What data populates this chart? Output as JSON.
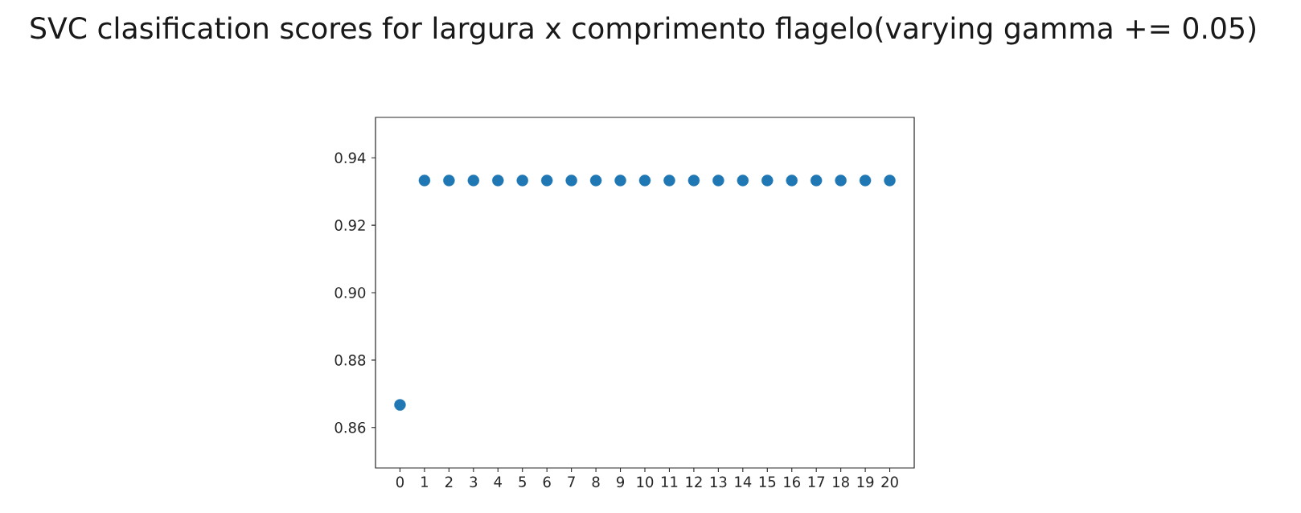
{
  "chart_data": {
    "type": "scatter",
    "title": "SVC clasification scores for  largura x comprimento flagelo(varying gamma += 0.05)",
    "x": [
      0,
      1,
      2,
      3,
      4,
      5,
      6,
      7,
      8,
      9,
      10,
      11,
      12,
      13,
      14,
      15,
      16,
      17,
      18,
      19,
      20
    ],
    "values": [
      0.8667,
      0.9333,
      0.9333,
      0.9333,
      0.9333,
      0.9333,
      0.9333,
      0.9333,
      0.9333,
      0.9333,
      0.9333,
      0.9333,
      0.9333,
      0.9333,
      0.9333,
      0.9333,
      0.9333,
      0.9333,
      0.9333,
      0.9333,
      0.9333
    ],
    "color": "#1f77b4",
    "marker": "circle",
    "xlim": [
      -1,
      21
    ],
    "ylim": [
      0.848,
      0.952
    ],
    "xticks": [
      0,
      1,
      2,
      3,
      4,
      5,
      6,
      7,
      8,
      9,
      10,
      11,
      12,
      13,
      14,
      15,
      16,
      17,
      18,
      19,
      20
    ],
    "yticks": [
      0.86,
      0.88,
      {
        "value": 0.9,
        "label": "0.90"
      },
      0.92,
      0.94
    ]
  }
}
